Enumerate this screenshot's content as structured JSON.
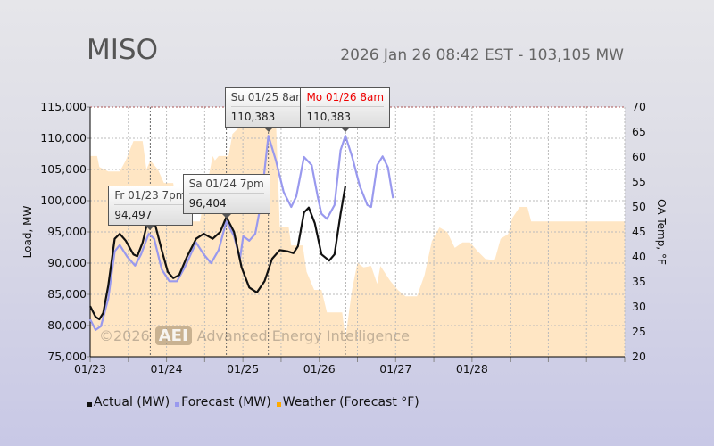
{
  "header": {
    "title": "MISO",
    "subtitle": "2026 Jan 26 08:42 EST - 103,105 MW"
  },
  "watermark": {
    "year": "©2026",
    "logo": "AEI",
    "text": "Advanced Energy Intelligence"
  },
  "chart_data": {
    "type": "line",
    "x_unit": "hours since 01/23 00:00",
    "xlim": [
      0,
      168
    ],
    "x_ticks": [
      {
        "h": 0,
        "label": "01/23"
      },
      {
        "h": 24,
        "label": "01/24"
      },
      {
        "h": 48,
        "label": "01/25"
      },
      {
        "h": 72,
        "label": "01/26"
      },
      {
        "h": 96,
        "label": "01/27"
      },
      {
        "h": 120,
        "label": "01/28"
      }
    ],
    "ylabel": "Load, MW",
    "ylim": [
      75000,
      115000
    ],
    "y_ticks": [
      "75,000",
      "80,000",
      "85,000",
      "90,000",
      "95,000",
      "100,000",
      "105,000",
      "110,000",
      "115,000"
    ],
    "y2label": "OA Temp, °F",
    "y2lim": [
      20,
      70
    ],
    "y2_ticks": [
      "20",
      "25",
      "30",
      "35",
      "40",
      "45",
      "50",
      "55",
      "60",
      "65",
      "70"
    ],
    "series": [
      {
        "name": "Actual (MW)",
        "color": "#111111",
        "axis": "left",
        "points": [
          [
            0,
            83100
          ],
          [
            1.7,
            81400
          ],
          [
            2.9,
            81000
          ],
          [
            4.1,
            82000
          ],
          [
            5.7,
            86400
          ],
          [
            7.7,
            93900
          ],
          [
            9.3,
            94700
          ],
          [
            11.2,
            93600
          ],
          [
            13.6,
            91400
          ],
          [
            14.8,
            91100
          ],
          [
            16.5,
            93300
          ],
          [
            18.4,
            97400
          ],
          [
            20.3,
            96400
          ],
          [
            22.5,
            92100
          ],
          [
            24.4,
            88600
          ],
          [
            26.1,
            87600
          ],
          [
            28,
            88100
          ],
          [
            30.4,
            91000
          ],
          [
            33.3,
            93900
          ],
          [
            35.7,
            94700
          ],
          [
            38.5,
            93900
          ],
          [
            40.9,
            95000
          ],
          [
            42.8,
            97400
          ],
          [
            45.2,
            95000
          ],
          [
            47.6,
            89300
          ],
          [
            50,
            86100
          ],
          [
            52.4,
            85300
          ],
          [
            54.8,
            87100
          ],
          [
            57.2,
            90700
          ],
          [
            59.6,
            92100
          ],
          [
            62,
            91900
          ],
          [
            63.9,
            91600
          ],
          [
            65.3,
            92700
          ],
          [
            67.2,
            98100
          ],
          [
            68.7,
            98900
          ],
          [
            70.6,
            96400
          ],
          [
            72.7,
            91400
          ],
          [
            75.1,
            90400
          ],
          [
            76.8,
            91400
          ],
          [
            78.7,
            97900
          ],
          [
            80.2,
            102400
          ]
        ]
      },
      {
        "name": "Forecast (MW)",
        "color": "#9999ee",
        "axis": "left",
        "points": [
          [
            0,
            81000
          ],
          [
            1.7,
            79300
          ],
          [
            3.4,
            79900
          ],
          [
            5.7,
            84300
          ],
          [
            7.7,
            91900
          ],
          [
            9.3,
            92900
          ],
          [
            11.7,
            91000
          ],
          [
            14.1,
            89600
          ],
          [
            16,
            91400
          ],
          [
            18.4,
            94700
          ],
          [
            20.1,
            93900
          ],
          [
            22.5,
            89000
          ],
          [
            24.9,
            87100
          ],
          [
            27.3,
            87100
          ],
          [
            29.7,
            89300
          ],
          [
            33.3,
            93300
          ],
          [
            35.7,
            91400
          ],
          [
            38,
            90000
          ],
          [
            40.4,
            92100
          ],
          [
            42.8,
            96700
          ],
          [
            45.2,
            94300
          ],
          [
            47.1,
            90700
          ],
          [
            48.1,
            94300
          ],
          [
            50,
            93600
          ],
          [
            51.9,
            94700
          ],
          [
            53.6,
            99300
          ],
          [
            56,
            110400
          ],
          [
            58.4,
            106400
          ],
          [
            60.8,
            101400
          ],
          [
            63.2,
            99000
          ],
          [
            64.8,
            100700
          ],
          [
            67.2,
            107000
          ],
          [
            69.6,
            105700
          ],
          [
            71.5,
            100700
          ],
          [
            72.7,
            97900
          ],
          [
            74.4,
            97100
          ],
          [
            76.8,
            99300
          ],
          [
            78.7,
            108100
          ],
          [
            80.2,
            110400
          ],
          [
            82.3,
            107100
          ],
          [
            84.7,
            102400
          ],
          [
            87.1,
            99300
          ],
          [
            88.3,
            99000
          ],
          [
            90.2,
            105700
          ],
          [
            91.9,
            107100
          ],
          [
            93.6,
            105300
          ],
          [
            95.2,
            100400
          ]
        ]
      },
      {
        "name": "Weather (Forecast °F)",
        "color": "#ffa500",
        "fill": "#ffe6c4",
        "axis": "right",
        "type": "area",
        "points": [
          [
            0,
            60.2
          ],
          [
            2.2,
            60.2
          ],
          [
            2.9,
            58
          ],
          [
            5.7,
            57.1
          ],
          [
            9.3,
            57.1
          ],
          [
            11.2,
            59.3
          ],
          [
            13.6,
            63.2
          ],
          [
            16.5,
            63.2
          ],
          [
            17.7,
            57.5
          ],
          [
            18.9,
            59.3
          ],
          [
            21.3,
            57.5
          ],
          [
            23.2,
            54.8
          ],
          [
            26.1,
            54.8
          ],
          [
            26.6,
            52.5
          ],
          [
            29.7,
            52.5
          ],
          [
            30.9,
            49.8
          ],
          [
            32.1,
            47.1
          ],
          [
            34.5,
            47.1
          ],
          [
            38.5,
            60.2
          ],
          [
            39.2,
            59.3
          ],
          [
            40.4,
            60.2
          ],
          [
            43.5,
            60.2
          ],
          [
            44.7,
            64.6
          ],
          [
            47.6,
            66.4
          ],
          [
            49.5,
            70
          ],
          [
            54.8,
            70
          ],
          [
            58.4,
            67.3
          ],
          [
            59.6,
            45.9
          ],
          [
            62.4,
            45.9
          ],
          [
            63.2,
            42.3
          ],
          [
            66.8,
            42.3
          ],
          [
            68,
            37
          ],
          [
            70.4,
            33.4
          ],
          [
            72.7,
            33.4
          ],
          [
            74.4,
            28.9
          ],
          [
            79.2,
            28.9
          ],
          [
            80.2,
            23.6
          ],
          [
            82.3,
            33.4
          ],
          [
            84,
            38.8
          ],
          [
            85.9,
            37.9
          ],
          [
            88.3,
            38.2
          ],
          [
            90.2,
            34.6
          ],
          [
            91.2,
            38.2
          ],
          [
            94.3,
            35.2
          ],
          [
            96.7,
            33.4
          ],
          [
            99.1,
            32.1
          ],
          [
            102.7,
            32.1
          ],
          [
            105.1,
            36.4
          ],
          [
            107.4,
            43.2
          ],
          [
            109.8,
            45.9
          ],
          [
            112.2,
            45
          ],
          [
            114.6,
            41.8
          ],
          [
            117,
            42.9
          ],
          [
            119.4,
            42.9
          ],
          [
            121.8,
            41.1
          ],
          [
            124.2,
            39.6
          ],
          [
            127.1,
            39.3
          ],
          [
            129,
            43.6
          ],
          [
            131.4,
            44.6
          ],
          [
            132.6,
            47.7
          ],
          [
            135,
            50
          ],
          [
            137.4,
            50
          ],
          [
            138.6,
            47.1
          ],
          [
            143.4,
            47.1
          ],
          [
            168,
            47.1
          ]
        ]
      }
    ],
    "markers": [
      {
        "h": 18.9,
        "label": "Fr 01/23 7pm",
        "value": "94,497",
        "highlight": false
      },
      {
        "h": 42.8,
        "label": "Sa 01/24 7pm",
        "value": "96,404",
        "highlight": false
      },
      {
        "h": 56,
        "label": "Su 01/25 8am",
        "value": "110,383",
        "highlight": false
      },
      {
        "h": 80.2,
        "label": "Mo 01/26 8am",
        "value": "110,383",
        "highlight": true
      }
    ]
  }
}
